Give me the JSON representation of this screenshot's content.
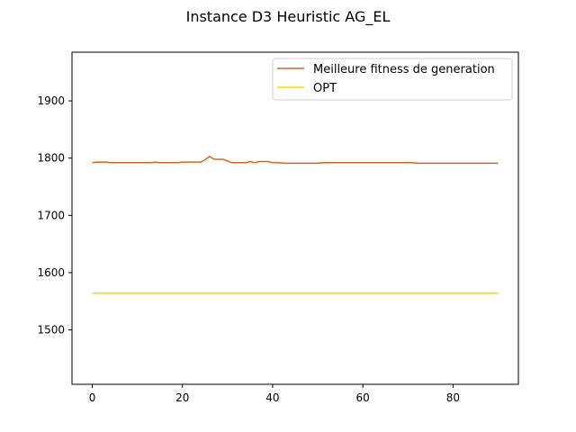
{
  "chart_data": {
    "type": "line",
    "title": "Instance D3 Heuristic AG_EL",
    "xlabel": "",
    "ylabel": "",
    "xlim": [
      -4.5,
      94.5
    ],
    "ylim": [
      1405,
      1985
    ],
    "xticks": [
      0,
      20,
      40,
      60,
      80
    ],
    "yticks": [
      1500,
      1600,
      1700,
      1800,
      1900
    ],
    "grid": false,
    "legend_position": "top-right",
    "series": [
      {
        "name": "Meilleure fitness de generation",
        "color": "#d2691e",
        "x": [
          0,
          1,
          2,
          3,
          4,
          5,
          10,
          13,
          14,
          15,
          18,
          19,
          20,
          23,
          24,
          25,
          26,
          27,
          29,
          30,
          31,
          34,
          35,
          36,
          37,
          39,
          40,
          41,
          43,
          44,
          50,
          51,
          71,
          72,
          90
        ],
        "y": [
          1792,
          1793,
          1793,
          1793,
          1792,
          1792,
          1792,
          1792,
          1793,
          1792,
          1792,
          1792,
          1793,
          1793,
          1793,
          1797,
          1803,
          1798,
          1798,
          1795,
          1792,
          1792,
          1794,
          1792,
          1794,
          1794,
          1792,
          1792,
          1791,
          1791,
          1791,
          1792,
          1792,
          1791,
          1791
        ]
      },
      {
        "name": "OPT",
        "color": "#ffd700",
        "x": [
          0,
          90
        ],
        "y": [
          1564,
          1564
        ]
      }
    ]
  }
}
